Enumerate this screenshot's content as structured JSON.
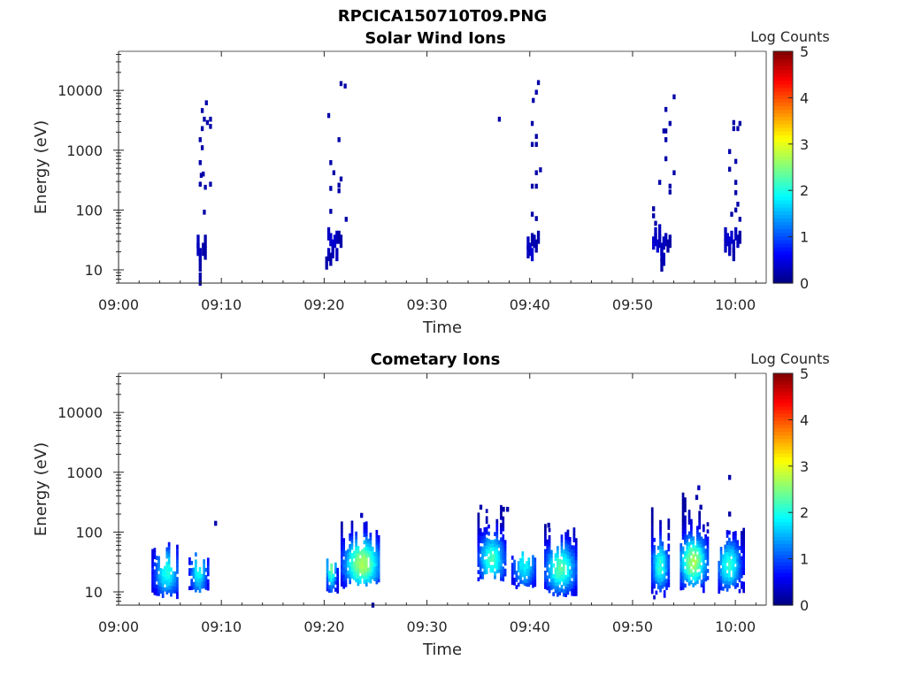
{
  "figure_title": "RPCICA150710T09.PNG",
  "chart_data": [
    {
      "type": "heatmap",
      "title": "Solar Wind Ions",
      "xlabel": "Time",
      "ylabel": "Energy (eV)",
      "x_ticks": [
        "09:00",
        "09:10",
        "09:20",
        "09:30",
        "09:40",
        "09:50",
        "10:00"
      ],
      "x_range_minutes": [
        0,
        63
      ],
      "y_scale": "log",
      "y_range": [
        6,
        45000
      ],
      "y_ticks": [
        {
          "value": 10,
          "label": "10"
        },
        {
          "value": 100,
          "label": "100"
        },
        {
          "value": 1000,
          "label": "1000"
        },
        {
          "value": 10000,
          "label": "10000"
        }
      ],
      "colorbar": {
        "label": "Log Counts",
        "range": [
          0,
          5
        ],
        "ticks": [
          "0",
          "1",
          "2",
          "3",
          "4",
          "5"
        ],
        "colormap": "jet"
      },
      "grid": false,
      "cells": [
        {
          "t": 7.6,
          "e": 30,
          "c": 0.3
        },
        {
          "t": 7.6,
          "e": 22,
          "c": 0.3
        },
        {
          "t": 7.8,
          "e": 18,
          "c": 0.3
        },
        {
          "t": 7.8,
          "e": 12,
          "c": 0.2
        },
        {
          "t": 7.8,
          "e": 7,
          "c": 0.2
        },
        {
          "t": 8.1,
          "e": 22,
          "c": 0.2
        },
        {
          "t": 8.3,
          "e": 30,
          "c": 0.2
        },
        {
          "t": 8.3,
          "e": 19,
          "c": 0.2
        },
        {
          "t": 8.2,
          "e": 92,
          "c": 0.2
        },
        {
          "t": 7.8,
          "e": 270,
          "c": 0.2
        },
        {
          "t": 8.1,
          "e": 400,
          "c": 0.2
        },
        {
          "t": 7.9,
          "e": 380,
          "c": 0.2
        },
        {
          "t": 8.3,
          "e": 240,
          "c": 0.2
        },
        {
          "t": 8.8,
          "e": 270,
          "c": 0.2
        },
        {
          "t": 7.8,
          "e": 620,
          "c": 0.2
        },
        {
          "t": 8.0,
          "e": 1100,
          "c": 0.2
        },
        {
          "t": 7.8,
          "e": 1500,
          "c": 0.2
        },
        {
          "t": 8.0,
          "e": 2300,
          "c": 0.2
        },
        {
          "t": 8.2,
          "e": 3300,
          "c": 0.2
        },
        {
          "t": 8.5,
          "e": 2900,
          "c": 0.2
        },
        {
          "t": 8.8,
          "e": 3300,
          "c": 0.2
        },
        {
          "t": 8.0,
          "e": 4600,
          "c": 0.2
        },
        {
          "t": 8.4,
          "e": 6200,
          "c": 0.2
        },
        {
          "t": 8.8,
          "e": 2500,
          "c": 0.2
        },
        {
          "t": 20.3,
          "e": 40,
          "c": 0.3
        },
        {
          "t": 20.5,
          "e": 32,
          "c": 0.4
        },
        {
          "t": 20.7,
          "e": 25,
          "c": 0.4
        },
        {
          "t": 20.9,
          "e": 30,
          "c": 0.4
        },
        {
          "t": 21.1,
          "e": 35,
          "c": 0.3
        },
        {
          "t": 20.3,
          "e": 18,
          "c": 0.3
        },
        {
          "t": 20.7,
          "e": 20,
          "c": 0.3
        },
        {
          "t": 21.1,
          "e": 18,
          "c": 0.3
        },
        {
          "t": 20.5,
          "e": 15,
          "c": 0.2
        },
        {
          "t": 20.1,
          "e": 13,
          "c": 0.2
        },
        {
          "t": 21.3,
          "e": 35,
          "c": 0.2
        },
        {
          "t": 21.5,
          "e": 30,
          "c": 0.2
        },
        {
          "t": 20.5,
          "e": 95,
          "c": 0.2
        },
        {
          "t": 22.0,
          "e": 70,
          "c": 0.2
        },
        {
          "t": 20.5,
          "e": 230,
          "c": 0.2
        },
        {
          "t": 20.8,
          "e": 420,
          "c": 0.2
        },
        {
          "t": 21.5,
          "e": 330,
          "c": 0.2
        },
        {
          "t": 21.3,
          "e": 260,
          "c": 0.2
        },
        {
          "t": 21.3,
          "e": 210,
          "c": 0.2
        },
        {
          "t": 20.5,
          "e": 620,
          "c": 0.2
        },
        {
          "t": 21.3,
          "e": 1500,
          "c": 0.2
        },
        {
          "t": 20.3,
          "e": 3800,
          "c": 0.2
        },
        {
          "t": 21.5,
          "e": 13000,
          "c": 0.2
        },
        {
          "t": 21.9,
          "e": 11800,
          "c": 0.2
        },
        {
          "t": 36.9,
          "e": 3300,
          "c": 0.2
        },
        {
          "t": 39.7,
          "e": 28,
          "c": 0.3
        },
        {
          "t": 39.9,
          "e": 22,
          "c": 0.4
        },
        {
          "t": 40.1,
          "e": 18,
          "c": 0.4
        },
        {
          "t": 39.7,
          "e": 20,
          "c": 0.3
        },
        {
          "t": 40.3,
          "e": 30,
          "c": 0.3
        },
        {
          "t": 40.5,
          "e": 25,
          "c": 0.2
        },
        {
          "t": 40.7,
          "e": 35,
          "c": 0.2
        },
        {
          "t": 40.1,
          "e": 32,
          "c": 0.2
        },
        {
          "t": 40.1,
          "e": 85,
          "c": 0.2
        },
        {
          "t": 40.5,
          "e": 72,
          "c": 0.2
        },
        {
          "t": 40.1,
          "e": 250,
          "c": 0.2
        },
        {
          "t": 40.5,
          "e": 250,
          "c": 0.2
        },
        {
          "t": 40.5,
          "e": 420,
          "c": 0.2
        },
        {
          "t": 40.9,
          "e": 470,
          "c": 0.2
        },
        {
          "t": 40.5,
          "e": 1700,
          "c": 0.2
        },
        {
          "t": 40.1,
          "e": 1250,
          "c": 0.2
        },
        {
          "t": 40.5,
          "e": 1250,
          "c": 0.2
        },
        {
          "t": 40.1,
          "e": 2800,
          "c": 0.2
        },
        {
          "t": 40.2,
          "e": 6800,
          "c": 0.2
        },
        {
          "t": 40.5,
          "e": 9300,
          "c": 0.2
        },
        {
          "t": 40.7,
          "e": 13500,
          "c": 0.2
        },
        {
          "t": 51.9,
          "e": 28,
          "c": 0.4
        },
        {
          "t": 52.1,
          "e": 32,
          "c": 0.4
        },
        {
          "t": 52.3,
          "e": 25,
          "c": 0.4
        },
        {
          "t": 52.5,
          "e": 30,
          "c": 0.3
        },
        {
          "t": 52.7,
          "e": 22,
          "c": 0.3
        },
        {
          "t": 52.9,
          "e": 28,
          "c": 0.3
        },
        {
          "t": 53.1,
          "e": 32,
          "c": 0.3
        },
        {
          "t": 53.3,
          "e": 25,
          "c": 0.2
        },
        {
          "t": 53.5,
          "e": 30,
          "c": 0.2
        },
        {
          "t": 52.1,
          "e": 40,
          "c": 0.3
        },
        {
          "t": 52.5,
          "e": 45,
          "c": 0.3
        },
        {
          "t": 52.7,
          "e": 18,
          "c": 0.3
        },
        {
          "t": 52.9,
          "e": 15,
          "c": 0.3
        },
        {
          "t": 52.7,
          "e": 12,
          "c": 0.2
        },
        {
          "t": 52.1,
          "e": 60,
          "c": 0.2
        },
        {
          "t": 51.9,
          "e": 80,
          "c": 0.2
        },
        {
          "t": 51.9,
          "e": 105,
          "c": 0.2
        },
        {
          "t": 53.5,
          "e": 200,
          "c": 0.2
        },
        {
          "t": 53.5,
          "e": 250,
          "c": 0.2
        },
        {
          "t": 52.5,
          "e": 290,
          "c": 0.2
        },
        {
          "t": 53.9,
          "e": 420,
          "c": 0.2
        },
        {
          "t": 53.1,
          "e": 720,
          "c": 0.2
        },
        {
          "t": 53.1,
          "e": 1500,
          "c": 0.2
        },
        {
          "t": 52.9,
          "e": 2100,
          "c": 0.2
        },
        {
          "t": 53.1,
          "e": 2100,
          "c": 0.2
        },
        {
          "t": 53.5,
          "e": 2800,
          "c": 0.2
        },
        {
          "t": 53.1,
          "e": 4800,
          "c": 0.2
        },
        {
          "t": 53.9,
          "e": 7800,
          "c": 0.2
        },
        {
          "t": 58.9,
          "e": 40,
          "c": 0.3
        },
        {
          "t": 59.1,
          "e": 32,
          "c": 0.4
        },
        {
          "t": 59.3,
          "e": 28,
          "c": 0.4
        },
        {
          "t": 59.5,
          "e": 35,
          "c": 0.4
        },
        {
          "t": 59.7,
          "e": 25,
          "c": 0.3
        },
        {
          "t": 59.9,
          "e": 40,
          "c": 0.3
        },
        {
          "t": 60.1,
          "e": 30,
          "c": 0.3
        },
        {
          "t": 58.9,
          "e": 25,
          "c": 0.3
        },
        {
          "t": 59.3,
          "e": 22,
          "c": 0.3
        },
        {
          "t": 59.7,
          "e": 18,
          "c": 0.2
        },
        {
          "t": 60.3,
          "e": 35,
          "c": 0.2
        },
        {
          "t": 60.3,
          "e": 70,
          "c": 0.2
        },
        {
          "t": 59.5,
          "e": 85,
          "c": 0.2
        },
        {
          "t": 59.9,
          "e": 100,
          "c": 0.2
        },
        {
          "t": 60.1,
          "e": 125,
          "c": 0.2
        },
        {
          "t": 59.9,
          "e": 195,
          "c": 0.2
        },
        {
          "t": 59.9,
          "e": 290,
          "c": 0.2
        },
        {
          "t": 59.3,
          "e": 480,
          "c": 0.2
        },
        {
          "t": 59.9,
          "e": 650,
          "c": 0.2
        },
        {
          "t": 59.3,
          "e": 950,
          "c": 0.2
        },
        {
          "t": 59.7,
          "e": 2300,
          "c": 0.2
        },
        {
          "t": 59.7,
          "e": 2900,
          "c": 0.2
        },
        {
          "t": 60.1,
          "e": 2300,
          "c": 0.2
        },
        {
          "t": 60.3,
          "e": 2800,
          "c": 0.2
        }
      ]
    },
    {
      "type": "heatmap",
      "title": "Cometary Ions",
      "xlabel": "Time",
      "ylabel": "Energy (eV)",
      "x_ticks": [
        "09:00",
        "09:10",
        "09:20",
        "09:30",
        "09:40",
        "09:50",
        "10:00"
      ],
      "x_range_minutes": [
        0,
        63
      ],
      "y_scale": "log",
      "y_range": [
        6,
        45000
      ],
      "y_ticks": [
        {
          "value": 10,
          "label": "10"
        },
        {
          "value": 100,
          "label": "100"
        },
        {
          "value": 1000,
          "label": "1000"
        },
        {
          "value": 10000,
          "label": "10000"
        }
      ],
      "colorbar": {
        "label": "Log Counts",
        "range": [
          0,
          5
        ],
        "ticks": [
          "0",
          "1",
          "2",
          "3",
          "4",
          "5"
        ],
        "colormap": "jet"
      },
      "grid": false,
      "bursts": [
        {
          "t_start": 3.2,
          "t_end": 5.8,
          "e_low": 8,
          "e_high": 70,
          "peak_t": 4.6,
          "peak_e": 22,
          "peak_c": 1.9
        },
        {
          "t_start": 6.8,
          "t_end": 8.6,
          "e_low": 10,
          "e_high": 45,
          "peak_t": 7.7,
          "peak_e": 22,
          "peak_c": 1.8
        },
        {
          "t_start": 20.2,
          "t_end": 21.3,
          "e_low": 10,
          "e_high": 45,
          "peak_t": 20.6,
          "peak_e": 28,
          "peak_c": 2.3
        },
        {
          "t_start": 21.6,
          "t_end": 25.3,
          "e_low": 12,
          "e_high": 200,
          "peak_t": 23.6,
          "peak_e": 30,
          "peak_c": 2.6
        },
        {
          "t_start": 34.9,
          "t_end": 37.6,
          "e_low": 16,
          "e_high": 270,
          "peak_t": 36.2,
          "peak_e": 35,
          "peak_c": 2.1
        },
        {
          "t_start": 38.2,
          "t_end": 40.6,
          "e_low": 12,
          "e_high": 45,
          "peak_t": 39.4,
          "peak_e": 30,
          "peak_c": 1.8
        },
        {
          "t_start": 41.4,
          "t_end": 44.6,
          "e_low": 8,
          "e_high": 140,
          "peak_t": 42.9,
          "peak_e": 25,
          "peak_c": 2.2
        },
        {
          "t_start": 51.8,
          "t_end": 53.6,
          "e_low": 8,
          "e_high": 250,
          "peak_t": 52.6,
          "peak_e": 28,
          "peak_c": 2.0
        },
        {
          "t_start": 54.6,
          "t_end": 57.4,
          "e_low": 10,
          "e_high": 550,
          "peak_t": 55.8,
          "peak_e": 32,
          "peak_c": 2.6
        },
        {
          "t_start": 58.3,
          "t_end": 60.8,
          "e_low": 10,
          "e_high": 120,
          "peak_t": 59.3,
          "peak_e": 28,
          "peak_c": 2.0
        }
      ],
      "cells": [
        {
          "t": 9.3,
          "e": 140,
          "c": 0.2
        },
        {
          "t": 56.3,
          "e": 550,
          "c": 0.3
        },
        {
          "t": 59.3,
          "e": 820,
          "c": 0.2
        },
        {
          "t": 37.3,
          "e": 240,
          "c": 0.2
        },
        {
          "t": 37.7,
          "e": 240,
          "c": 0.2
        },
        {
          "t": 35.1,
          "e": 260,
          "c": 0.2
        },
        {
          "t": 23.5,
          "e": 190,
          "c": 0.3
        },
        {
          "t": 24.6,
          "e": 6,
          "c": 0.2
        },
        {
          "t": 59.3,
          "e": 200,
          "c": 0.2
        },
        {
          "t": 56.1,
          "e": 380,
          "c": 0.2
        },
        {
          "t": 56.5,
          "e": 260,
          "c": 0.2
        },
        {
          "t": 41.7,
          "e": 130,
          "c": 0.2
        }
      ]
    }
  ]
}
